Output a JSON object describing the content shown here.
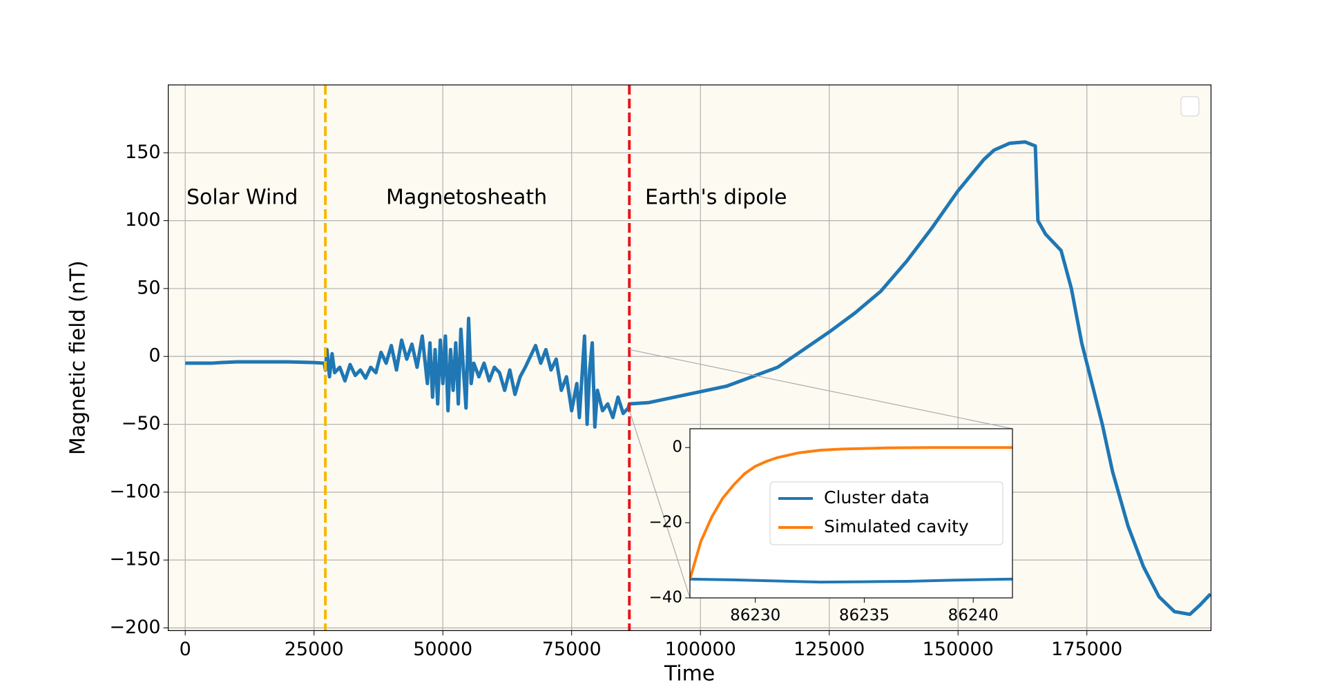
{
  "chart_data": [
    {
      "type": "line",
      "xlabel": "Time",
      "ylabel": "Magnetic field (nT)",
      "background": "#fdfaf2",
      "grid": true,
      "xlim": [
        -3300,
        199100
      ],
      "ylim": [
        -202,
        200
      ],
      "xticks": [
        0,
        25000,
        50000,
        75000,
        100000,
        125000,
        150000,
        175000
      ],
      "yticks": [
        {
          "value": -200,
          "label": "−200"
        },
        {
          "value": -150,
          "label": "−150"
        },
        {
          "value": -100,
          "label": "−100"
        },
        {
          "value": -50,
          "label": "−50"
        },
        0,
        50,
        100,
        150
      ],
      "vlines": [
        {
          "x": 27200,
          "color": "#f5b800"
        },
        {
          "x": 86200,
          "color": "#e8141a"
        }
      ],
      "annotations": [
        {
          "text": "Solar Wind",
          "color": "#f5b800"
        },
        {
          "text": "Magnetosheath",
          "color": "#f08a14"
        },
        {
          "text": "Earth's dipole",
          "color": "#e8141a"
        }
      ],
      "series": [
        {
          "name": "Cluster data",
          "color": "#1f77b4",
          "x": [
            0,
            5000,
            7000,
            10000,
            15000,
            20000,
            25000,
            27000,
            27200,
            27500,
            28000,
            28500,
            29000,
            30000,
            31000,
            32000,
            33000,
            34000,
            35000,
            36000,
            37000,
            38000,
            39000,
            40000,
            41000,
            42000,
            43000,
            44000,
            45000,
            46000,
            47000,
            47500,
            48000,
            48500,
            49000,
            49500,
            50000,
            50500,
            51000,
            51500,
            52000,
            52500,
            53000,
            53500,
            54000,
            54500,
            55000,
            55500,
            56000,
            57000,
            58000,
            59000,
            60000,
            61000,
            62000,
            63000,
            64000,
            65000,
            66000,
            67000,
            68000,
            69000,
            70000,
            71000,
            72000,
            73000,
            74000,
            75000,
            76000,
            76500,
            77000,
            77500,
            78000,
            78500,
            79000,
            79500,
            80000,
            81000,
            82000,
            83000,
            84000,
            85000,
            86000,
            86200,
            90000,
            95000,
            100000,
            105000,
            110000,
            115000,
            120000,
            125000,
            130000,
            135000,
            140000,
            145000,
            150000,
            155000,
            157000,
            160000,
            163000,
            165000,
            165500,
            167000,
            170000,
            172000,
            174000,
            175000,
            176000,
            178000,
            180000,
            183000,
            186000,
            189000,
            192000,
            195000,
            197000,
            199000
          ],
          "values": [
            -5,
            -5,
            -4.5,
            -4,
            -4,
            -4,
            -4.5,
            -5,
            -10,
            5,
            -15,
            2,
            -12,
            -8,
            -18,
            -6,
            -14,
            -10,
            -16,
            -8,
            -12,
            3,
            -5,
            8,
            -10,
            12,
            -2,
            9,
            -8,
            15,
            -20,
            10,
            -30,
            5,
            -35,
            12,
            -20,
            15,
            -40,
            5,
            -25,
            10,
            -35,
            20,
            -10,
            -38,
            28,
            -20,
            -5,
            -15,
            -5,
            -18,
            -8,
            -12,
            -25,
            -10,
            -28,
            -15,
            -8,
            0,
            8,
            -5,
            5,
            -10,
            -2,
            -25,
            -15,
            -40,
            -20,
            -45,
            -15,
            15,
            -50,
            -10,
            10,
            -52,
            -25,
            -40,
            -35,
            -45,
            -30,
            -42,
            -38,
            -35,
            -34,
            -30,
            -26,
            -22,
            -15,
            -8,
            5,
            18,
            32,
            48,
            70,
            95,
            122,
            145,
            152,
            157,
            158,
            155,
            100,
            90,
            78,
            50,
            10,
            -5,
            -20,
            -50,
            -85,
            -125,
            -155,
            -177,
            -188,
            -190,
            -183,
            -175
          ]
        }
      ]
    },
    {
      "type": "line",
      "background": "#ffffff",
      "grid": false,
      "legend": "center right",
      "xlim": [
        86227,
        86241.8
      ],
      "ylim": [
        -40,
        5
      ],
      "xticks": [
        86230,
        86235,
        86240
      ],
      "yticks": [
        {
          "value": -40,
          "label": "−40"
        },
        {
          "value": -20,
          "label": "−20"
        },
        0
      ],
      "series": [
        {
          "name": "Cluster data",
          "color": "#1f77b4",
          "x": [
            86227,
            86229,
            86231,
            86233,
            86235,
            86237,
            86239,
            86241.8
          ],
          "values": [
            -35,
            -35.2,
            -35.5,
            -35.8,
            -35.7,
            -35.6,
            -35.3,
            -35
          ]
        },
        {
          "name": "Simulated cavity",
          "color": "#ff7f0e",
          "x": [
            86227,
            86227.5,
            86228,
            86228.5,
            86229,
            86229.5,
            86230,
            86230.5,
            86231,
            86232,
            86233,
            86234,
            86236,
            86238,
            86241.8
          ],
          "values": [
            -35,
            -25,
            -18.5,
            -13.5,
            -10,
            -7,
            -5,
            -3.7,
            -2.7,
            -1.4,
            -0.7,
            -0.4,
            -0.1,
            0,
            0
          ]
        }
      ]
    }
  ]
}
